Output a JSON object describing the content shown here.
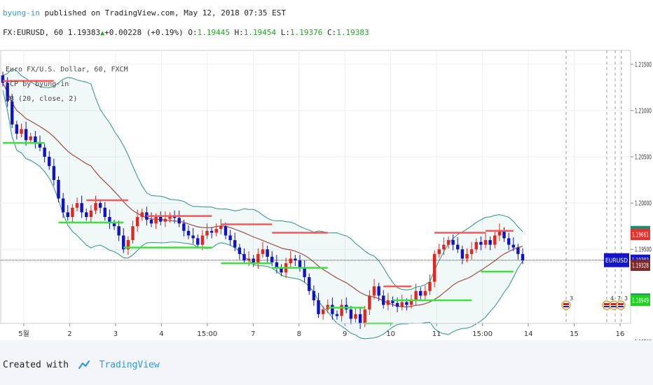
{
  "header": {
    "publisher": "byung-in",
    "published_text": "published on TradingView.com, May 12, 2018 07:35 EST",
    "symbol": "FX:EURUSD, 60",
    "last_price": "1.19383",
    "change": "+0.00228 (+0.19%)",
    "o_label": "O:",
    "o_value": "1.19445",
    "h_label": "H:",
    "h_value": "1.19454",
    "l_label": "L:",
    "l_value": "1.19376",
    "c_label": "C:",
    "c_value": "1.19383"
  },
  "legend": {
    "series_title": "Euro FX/U.S. Dollar, 60, FXCM",
    "indicator_1": "CCP by byung-in",
    "indicator_2": "BB (20, close, 2)"
  },
  "footer": {
    "created_with": "Created with",
    "brand": "TradingView"
  },
  "chart_data": {
    "type": "candlestick",
    "symbol": "FX:EURUSD, 60",
    "ylim": [
      1.187,
      1.2165
    ],
    "y_ticks": [
      "1.21500",
      "1.21000",
      "1.20500",
      "1.20000",
      "1.19500",
      "1.18500"
    ],
    "x_ticks": [
      "5월",
      "2",
      "3",
      "4",
      "15:00",
      "7",
      "8",
      "9",
      "10",
      "11",
      "15:00",
      "14",
      "15",
      "16"
    ],
    "price_labels": [
      {
        "value": "1.19693",
        "price": 1.19693,
        "color": "#1f8c6e"
      },
      {
        "value": "1.19661",
        "price": 1.19661,
        "color": "#e5302c"
      },
      {
        "value": "1.19383",
        "price": 1.19383,
        "color": "#1414c8"
      },
      {
        "value": "1.19328",
        "price": 1.19328,
        "color": "#7a2a2a"
      },
      {
        "value": "1.18963",
        "price": 1.18963,
        "color": "#1f8c6e"
      },
      {
        "value": "1.18949",
        "price": 1.18949,
        "color": "#1fd21f"
      }
    ],
    "symbol_label": "EURUSD",
    "current_price": 1.19383,
    "event_markers": [
      "3",
      "4",
      "7",
      "3"
    ],
    "resistance_segments": [
      {
        "from": 0,
        "to": 11,
        "price": 1.2132
      },
      {
        "from": 18,
        "to": 27,
        "price": 1.2003
      },
      {
        "from": 31,
        "to": 45,
        "price": 1.1986
      },
      {
        "from": 47,
        "to": 58,
        "price": 1.1977
      },
      {
        "from": 58,
        "to": 70,
        "price": 1.1968
      },
      {
        "from": 82,
        "to": 88,
        "price": 1.191
      },
      {
        "from": 93,
        "to": 104,
        "price": 1.1968
      },
      {
        "from": 104,
        "to": 110,
        "price": 1.197
      }
    ],
    "support_segments": [
      {
        "from": 0,
        "to": 9,
        "price": 1.2065
      },
      {
        "from": 12,
        "to": 26,
        "price": 1.1979
      },
      {
        "from": 26,
        "to": 45,
        "price": 1.1952
      },
      {
        "from": 47,
        "to": 58,
        "price": 1.1935
      },
      {
        "from": 58,
        "to": 70,
        "price": 1.193
      },
      {
        "from": 70,
        "to": 78,
        "price": 1.1887
      },
      {
        "from": 78,
        "to": 84,
        "price": 1.187
      },
      {
        "from": 84,
        "to": 101,
        "price": 1.1895
      },
      {
        "from": 103,
        "to": 110,
        "price": 1.1926
      }
    ],
    "closes": [
      1.213,
      1.211,
      1.2085,
      1.2075,
      1.208,
      1.2068,
      1.2072,
      1.2065,
      1.206,
      1.205,
      1.204,
      1.2025,
      1.2005,
      1.199,
      1.1985,
      1.1995,
      1.2,
      1.199,
      1.1985,
      1.1992,
      1.2,
      1.1995,
      1.1985,
      1.1978,
      1.1975,
      1.1965,
      1.195,
      1.196,
      1.1975,
      1.1985,
      1.199,
      1.1982,
      1.1978,
      1.1985,
      1.198,
      1.1983,
      1.1986,
      1.1984,
      1.1978,
      1.197,
      1.1965,
      1.1962,
      1.1955,
      1.1965,
      1.197,
      1.1968,
      1.1972,
      1.1975,
      1.1965,
      1.196,
      1.1952,
      1.1945,
      1.1938,
      1.194,
      1.1935,
      1.1945,
      1.195,
      1.1942,
      1.1936,
      1.193,
      1.1925,
      1.1935,
      1.194,
      1.1938,
      1.193,
      1.192,
      1.1905,
      1.1895,
      1.188,
      1.1885,
      1.189,
      1.188,
      1.1878,
      1.189,
      1.1885,
      1.1875,
      1.188,
      1.187,
      1.1885,
      1.19,
      1.191,
      1.19,
      1.189,
      1.1895,
      1.1892,
      1.1888,
      1.1893,
      1.189,
      1.1895,
      1.1905,
      1.19,
      1.1905,
      1.1915,
      1.1945,
      1.195,
      1.1955,
      1.196,
      1.1955,
      1.195,
      1.194,
      1.1945,
      1.195,
      1.1958,
      1.1955,
      1.196,
      1.1955,
      1.1965,
      1.197,
      1.1962,
      1.1955,
      1.1952,
      1.1945,
      1.1938
    ]
  }
}
